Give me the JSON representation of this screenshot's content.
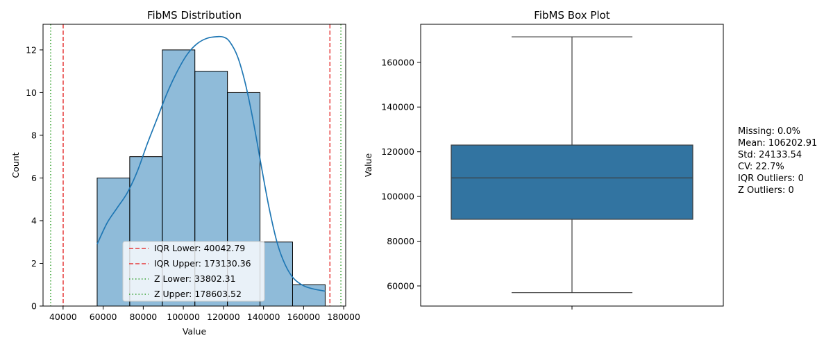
{
  "chart_data": [
    {
      "type": "histogram",
      "title": "FibMS Distribution",
      "xlabel": "Value",
      "ylabel": "Count",
      "xlim": [
        30000,
        181000
      ],
      "ylim": [
        0,
        13.2
      ],
      "xticks": [
        40000,
        60000,
        80000,
        100000,
        120000,
        140000,
        160000,
        180000
      ],
      "yticks": [
        0,
        2,
        4,
        6,
        8,
        10,
        12
      ],
      "bar_color": "#1f77b4",
      "bins": [
        {
          "start": 57000,
          "end": 73250,
          "count": 6
        },
        {
          "start": 73250,
          "end": 89500,
          "count": 7
        },
        {
          "start": 89500,
          "end": 105750,
          "count": 12
        },
        {
          "start": 105750,
          "end": 122000,
          "count": 11
        },
        {
          "start": 122000,
          "end": 138250,
          "count": 10
        },
        {
          "start": 138250,
          "end": 154500,
          "count": 3
        },
        {
          "start": 154500,
          "end": 170750,
          "count": 1
        }
      ],
      "kde": {
        "color": "#1f77b4",
        "x": [
          57000,
          62000,
          67000,
          72000,
          77000,
          82000,
          87000,
          92000,
          97000,
          102000,
          107000,
          112000,
          117000,
          120000,
          123000,
          127000,
          131000,
          135000,
          139000,
          143000,
          147000,
          151000,
          155000,
          160000,
          165000,
          170750
        ],
        "y": [
          2.9,
          3.9,
          4.6,
          5.3,
          6.3,
          7.6,
          8.8,
          10.0,
          11.0,
          11.8,
          12.3,
          12.55,
          12.62,
          12.6,
          12.4,
          11.7,
          10.4,
          8.6,
          6.5,
          4.5,
          2.9,
          1.9,
          1.3,
          0.95,
          0.8,
          0.7
        ]
      },
      "reference_lines": [
        {
          "label": "IQR Lower: 40042.79",
          "value": 40042.79,
          "color": "#e63b3b",
          "style": "dashed"
        },
        {
          "label": "IQR Upper: 173130.36",
          "value": 173130.36,
          "color": "#e63b3b",
          "style": "dashed"
        },
        {
          "label": "Z Lower: 33802.31",
          "value": 33802.31,
          "color": "#33a02c",
          "style": "dotted"
        },
        {
          "label": "Z Upper: 178603.52",
          "value": 178603.52,
          "color": "#33a02c",
          "style": "dotted"
        }
      ],
      "legend_position": "lower center"
    },
    {
      "type": "box",
      "title": "FibMS Box Plot",
      "xlabel": "",
      "ylabel": "Value",
      "ylim": [
        51000,
        177000
      ],
      "yticks": [
        60000,
        80000,
        100000,
        120000,
        140000,
        160000
      ],
      "box_color": "#3274a1",
      "whisker_low": 57000,
      "q1": 89800,
      "median": 108300,
      "q3": 123000,
      "whisker_high": 171400
    }
  ],
  "stats_annotation": [
    "Missing: 0.0%",
    "Mean: 106202.91",
    "Std: 24133.54",
    "CV: 22.7%",
    "IQR Outliers: 0",
    "Z Outliers: 0"
  ]
}
